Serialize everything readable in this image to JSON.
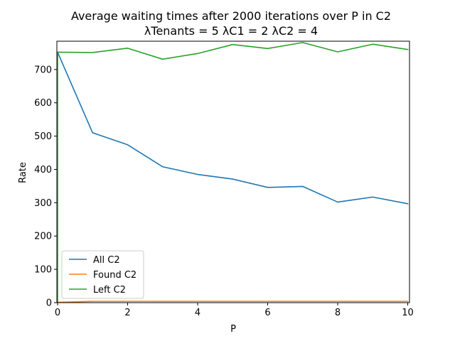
{
  "chart_data": {
    "type": "line",
    "title": "Average waiting times after 2000 iterations over P in C2",
    "subtitle": "λTenants = 5 λC1 = 2 λC2 = 4",
    "xlabel": "P",
    "ylabel": "Rate",
    "xlim": [
      -0.02,
      10.05
    ],
    "ylim": [
      0,
      785
    ],
    "xticks": [
      0,
      2,
      4,
      6,
      8,
      10
    ],
    "yticks": [
      0,
      100,
      200,
      300,
      400,
      500,
      600,
      700
    ],
    "grid": false,
    "legend_position": "lower-left",
    "x": [
      0,
      1,
      2,
      3,
      4,
      5,
      6,
      7,
      8,
      9,
      10
    ],
    "series": [
      {
        "name": "All C2",
        "color": "#1f77b4",
        "values": [
          752,
          510,
          474,
          408,
          385,
          371,
          346,
          349,
          302,
          317,
          297
        ]
      },
      {
        "name": "Found C2",
        "color": "#ff7f0e",
        "values": [
          1,
          4,
          4,
          4,
          4,
          4,
          4,
          4,
          4,
          4,
          4
        ]
      },
      {
        "name": "Left C2",
        "color": "#2ca02c",
        "values": [
          752,
          751,
          764,
          731,
          748,
          775,
          763,
          781,
          753,
          776,
          760
        ]
      }
    ]
  }
}
